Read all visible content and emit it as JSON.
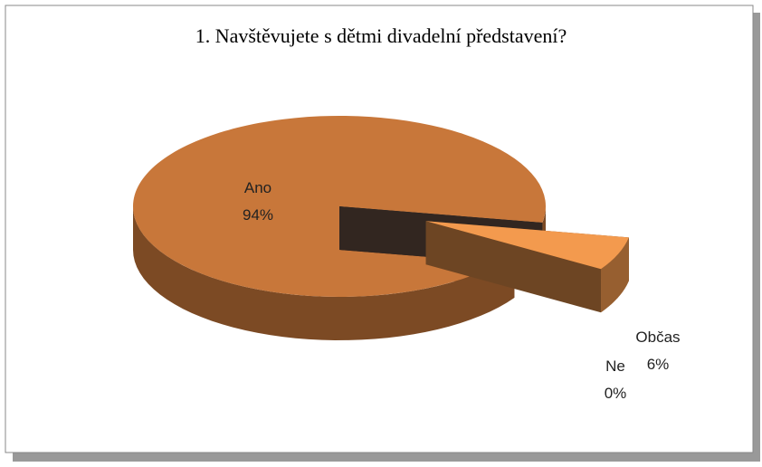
{
  "chart_data": {
    "type": "pie",
    "title": "1. Navštěvujete s dětmi divadelní představení?",
    "categories": [
      "Ano",
      "Ne",
      "Občas"
    ],
    "values": [
      94,
      0,
      6
    ],
    "value_labels": [
      "94%",
      "0%",
      "6%"
    ],
    "colors": [
      "#c8773a",
      "#6e5548",
      "#f39a4e"
    ],
    "three_d": true
  }
}
